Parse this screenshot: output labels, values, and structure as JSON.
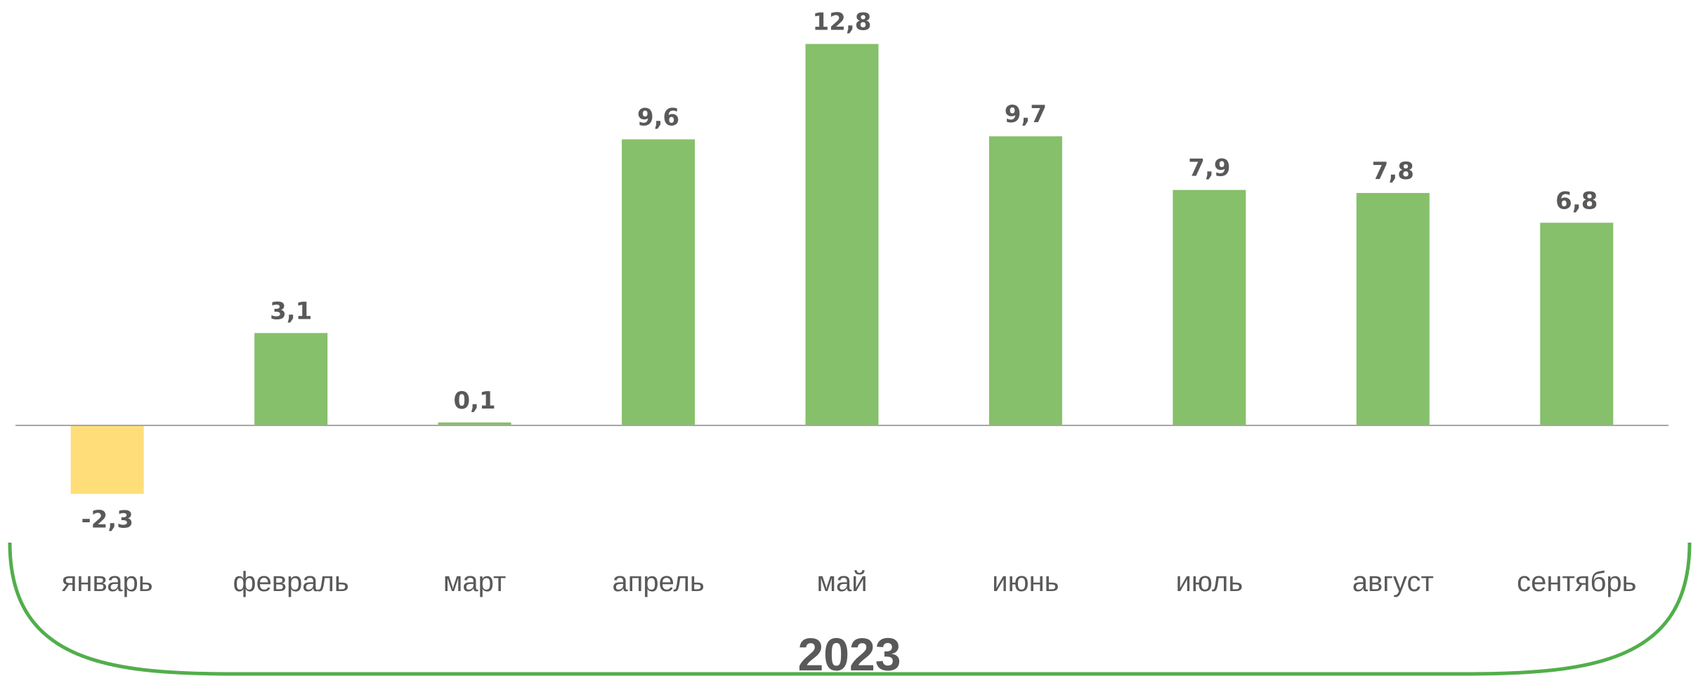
{
  "chart_data": {
    "type": "bar",
    "categories": [
      "январь",
      "февраль",
      "март",
      "апрель",
      "май",
      "июнь",
      "июль",
      "август",
      "сентябрь"
    ],
    "values": [
      -2.3,
      3.1,
      0.1,
      9.6,
      12.8,
      9.7,
      7.9,
      7.8,
      6.8
    ],
    "value_labels": [
      "-2,3",
      "3,1",
      "0,1",
      "9,6",
      "12,8",
      "9,7",
      "7,9",
      "7,8",
      "6,8"
    ],
    "group_label": "2023",
    "title": "",
    "xlabel": "",
    "ylabel": "",
    "ylim": [
      -2.3,
      12.8
    ],
    "grid": false,
    "legend": "none",
    "colors": {
      "positive": "#86C06A",
      "negative": "#FFDE7A",
      "axis": "#A6A6A6",
      "bracket": "#52AE4B",
      "text": "#595959"
    }
  }
}
